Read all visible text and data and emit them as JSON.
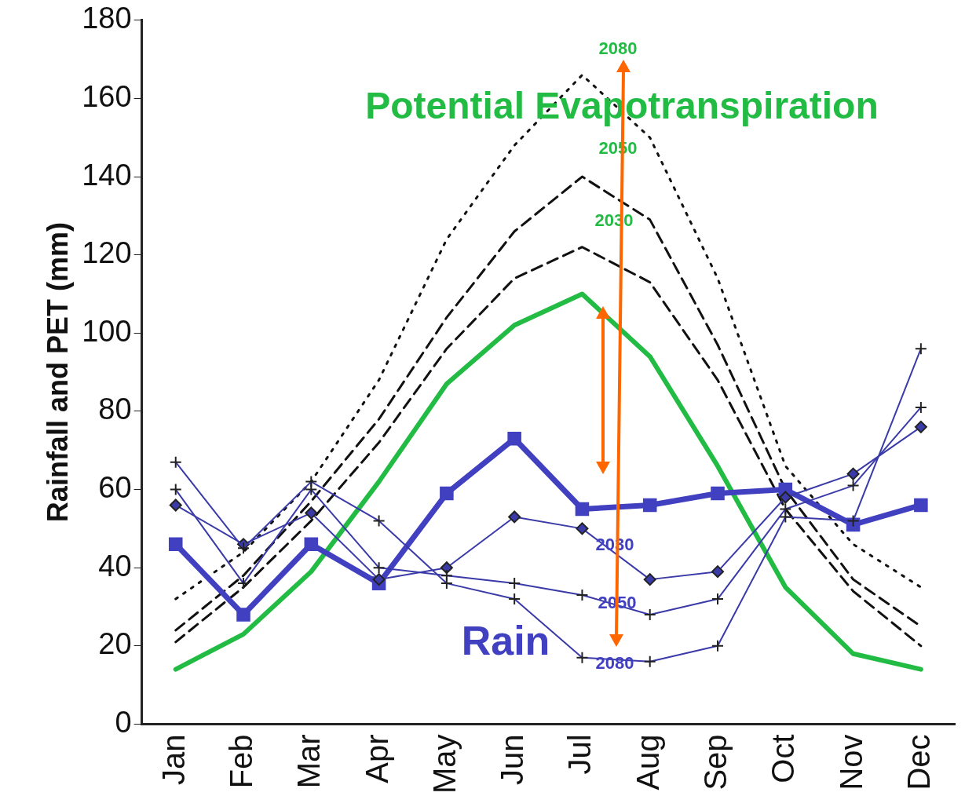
{
  "chart_data": {
    "type": "line",
    "ylabel": "Rainfall and PET (mm)",
    "categories": [
      "Jan",
      "Feb",
      "Mar",
      "Apr",
      "May",
      "Jun",
      "Jul",
      "Aug",
      "Sep",
      "Oct",
      "Nov",
      "Dec"
    ],
    "series": [
      {
        "color": "#22bb44",
        "line_style": "solid",
        "marker": "none",
        "values": [
          14,
          23,
          39,
          62,
          87,
          102,
          110,
          94,
          66,
          35,
          18,
          14
        ]
      },
      {
        "color": "#111111",
        "line_style": "dashed",
        "marker": "none",
        "values": [
          21,
          35,
          52,
          72,
          96,
          114,
          122,
          113,
          88,
          55,
          34,
          20
        ]
      },
      {
        "color": "#111111",
        "line_style": "dashed",
        "marker": "none",
        "values": [
          24,
          38,
          57,
          78,
          104,
          126,
          140,
          129,
          97,
          60,
          37,
          25
        ]
      },
      {
        "color": "#111111",
        "line_style": "dotted",
        "marker": "none",
        "values": [
          32,
          44,
          62,
          88,
          124,
          148,
          166,
          150,
          114,
          66,
          46,
          35
        ]
      },
      {
        "color": "#4040c0",
        "line_style": "solid",
        "marker": "square",
        "values": [
          46,
          28,
          46,
          36,
          59,
          73,
          55,
          56,
          59,
          60,
          51,
          56
        ]
      },
      {
        "color": "#3a3aa8",
        "line_style": "solid",
        "marker": "diamond",
        "values": [
          56,
          46,
          54,
          37,
          40,
          53,
          50,
          37,
          39,
          58,
          64,
          76
        ]
      },
      {
        "color": "#3a3aa8",
        "line_style": "solid",
        "marker": "cross",
        "values": [
          60,
          36,
          60,
          40,
          38,
          36,
          33,
          28,
          32,
          55,
          61,
          81
        ]
      },
      {
        "color": "#3a3aa8",
        "line_style": "solid",
        "marker": "cross",
        "values": [
          67,
          45,
          62,
          52,
          36,
          32,
          17,
          16,
          20,
          53,
          52,
          96
        ]
      }
    ],
    "ylim": [
      0,
      180
    ],
    "yticks": [
      0,
      20,
      40,
      60,
      80,
      100,
      120,
      140,
      160,
      180
    ],
    "grid": false,
    "legend": false,
    "annotations": [
      "Potential Evapotranspiration",
      "Rain",
      "2080",
      "2050",
      "2030",
      "2030",
      "2050",
      "2080"
    ]
  }
}
